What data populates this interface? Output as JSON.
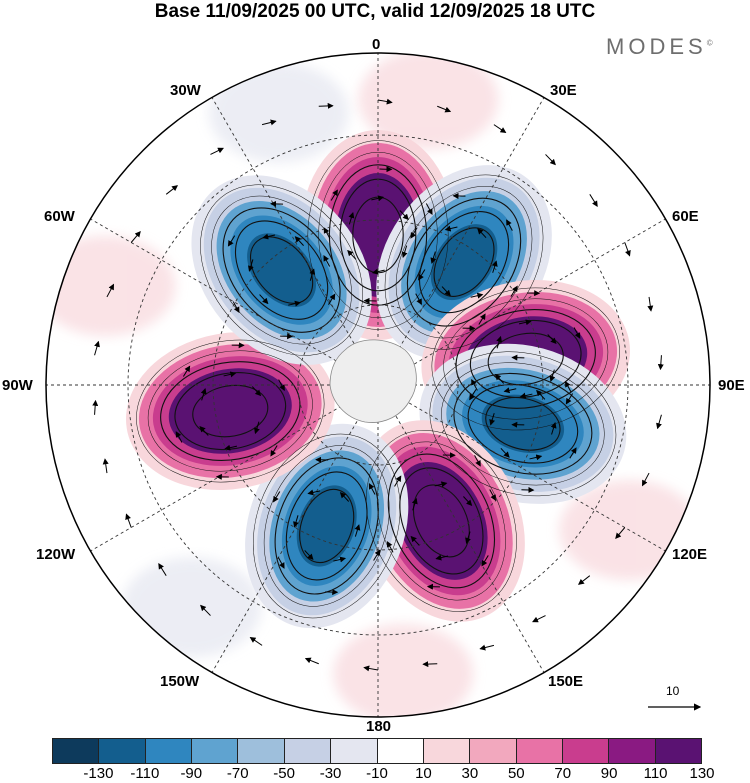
{
  "title": "Base 11/09/2025 00 UTC, valid 12/09/2025 18 UTC",
  "brand": {
    "name": "MODES",
    "mark": "©"
  },
  "longitude_labels": {
    "lon_0": "0",
    "lon_30e": "30E",
    "lon_60e": "60E",
    "lon_90e": "90E",
    "lon_120e": "120E",
    "lon_150e": "150E",
    "lon_180": "180",
    "lon_150w": "150W",
    "lon_120w": "120W",
    "lon_90w": "90W",
    "lon_60w": "60W",
    "lon_30w": "30W"
  },
  "colorbar": {
    "colors": [
      "#0d3a5c",
      "#135e8e",
      "#2f86bf",
      "#5fa3d0",
      "#9ebfdc",
      "#c6d0e5",
      "#e4e6f0",
      "#ffffff",
      "#f8d7dc",
      "#f2a8be",
      "#e872a6",
      "#c93d8e",
      "#8a1a82",
      "#5a1272"
    ],
    "tick_labels": [
      "-130",
      "-110",
      "-90",
      "-70",
      "-50",
      "-30",
      "-10",
      "10",
      "30",
      "50",
      "70",
      "90",
      "110",
      "130"
    ]
  },
  "reference_vector": {
    "label": "10"
  },
  "chart_data": {
    "type": "polar-stereographic-map",
    "projection": "south-polar",
    "field": "anomaly field with wind vectors",
    "contour_levels": [
      -130,
      -110,
      -90,
      -70,
      -50,
      -30,
      -10,
      10,
      30,
      50,
      70,
      90,
      110,
      130
    ],
    "anomaly_centers": [
      {
        "sign": "positive",
        "lon": 0,
        "approx_peak": 130
      },
      {
        "sign": "negative",
        "lon": 35,
        "approx_peak": -130
      },
      {
        "sign": "positive",
        "lon": 80,
        "approx_peak": 130
      },
      {
        "sign": "negative",
        "lon": 105,
        "approx_peak": -130
      },
      {
        "sign": "positive",
        "lon": 155,
        "approx_peak": 130
      },
      {
        "sign": "negative",
        "lon": -160,
        "approx_peak": -130
      },
      {
        "sign": "positive",
        "lon": -100,
        "approx_peak": 130
      },
      {
        "sign": "negative",
        "lon": -40,
        "approx_peak": -130
      }
    ]
  }
}
